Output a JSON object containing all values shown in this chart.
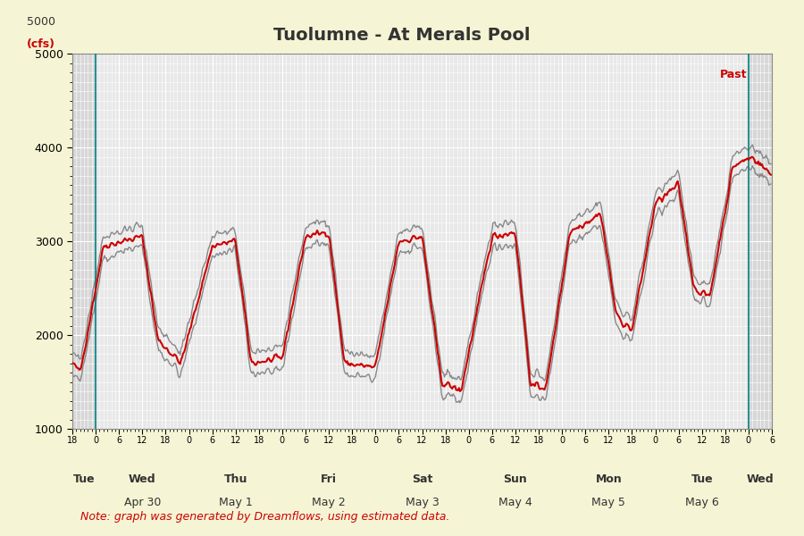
{
  "title": "Tuolumne - At Merals Pool",
  "ylabel": "(cfs)",
  "ylim": [
    1000,
    5000
  ],
  "yticks": [
    1000,
    2000,
    3000,
    4000,
    5000
  ],
  "background_color": "#f5f5d5",
  "plot_bg_color": "#e8e8e8",
  "grid_color": "#ffffff",
  "title_color": "#333333",
  "note_text": "Note: graph was generated by Dreamflows, using estimated data.",
  "note_color": "#cc0000",
  "past_label": "Past",
  "past_color": "#cc0000",
  "teal_line_color": "#008080",
  "gray_shaded_color": "#d0d0d0",
  "estimate_color": "#cc0000",
  "conf_range_color": "#888888",
  "missing_color": "#cc0000",
  "n_points": 500
}
